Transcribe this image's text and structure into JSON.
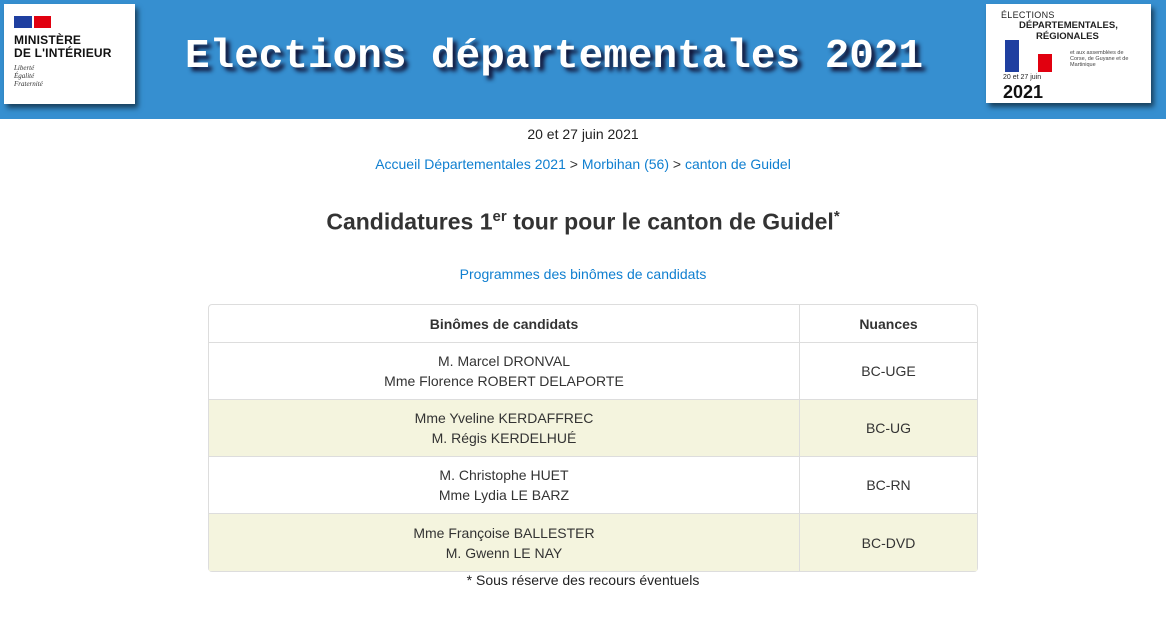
{
  "header": {
    "title": "Elections départementales 2021",
    "ministry_logo": {
      "line1": "MINISTÈRE",
      "line2": "DE L'INTÉRIEUR",
      "motto": [
        "Liberté",
        "Égalité",
        "Fraternité"
      ]
    },
    "election_logo": {
      "line1": "ÉLECTIONS",
      "line2": "DÉPARTEMENTALES,",
      "line3": "RÉGIONALES",
      "sub": "et aux assemblées de Corse, de Guyane et de Martinique",
      "dates": "20 et 27 juin",
      "year": "2021"
    }
  },
  "date": "20 et 27 juin 2021",
  "breadcrumb": [
    {
      "label": "Accueil Départementales 2021"
    },
    {
      "label": "Morbihan (56)"
    },
    {
      "label": "canton de Guidel"
    }
  ],
  "breadcrumb_sep": ">",
  "heading": {
    "pre": "Candidatures 1",
    "sup": "er",
    "post": " tour pour le canton de Guidel",
    "star": "*"
  },
  "programmes_link": "Programmes des binômes de candidats",
  "table": {
    "headers": [
      "Binômes de candidats",
      "Nuances"
    ],
    "rows": [
      {
        "c1": "M. Marcel DRONVAL",
        "c2": "Mme Florence ROBERT DELAPORTE",
        "nuance": "BC-UGE"
      },
      {
        "c1": "Mme Yveline KERDAFFREC",
        "c2": "M. Régis KERDELHUÉ",
        "nuance": "BC-UG"
      },
      {
        "c1": "M. Christophe HUET",
        "c2": "Mme Lydia LE BARZ",
        "nuance": "BC-RN"
      },
      {
        "c1": "Mme Françoise BALLESTER",
        "c2": "M. Gwenn LE NAY",
        "nuance": "BC-DVD"
      }
    ]
  },
  "footnote": "* Sous réserve des recours éventuels",
  "colors": {
    "header_bg": "#368fd0",
    "link": "#0f7fd0",
    "alt_row": "#f4f4de"
  }
}
